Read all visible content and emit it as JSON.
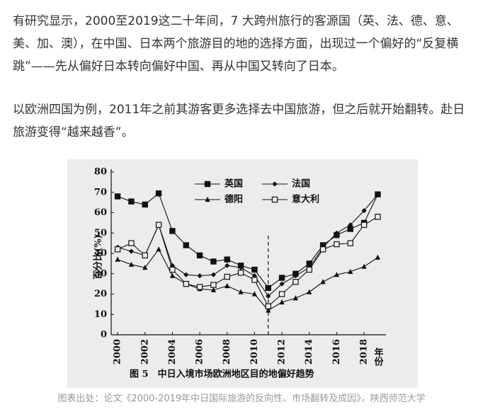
{
  "paragraphs": [
    "有研究显示，2000至2019这二十年间，7 大跨州旅行的客源国（英、法、德、意、美、加、澳），在中国、日本两个旅游目的地的选择方面，出现过一个偏好的“反复横跳”——先从偏好日本转向偏好中国、再从中国又转向了日本。",
    "以欧洲四国为例，2011年之前其游客更多选择去中国旅游，但之后就开始翻转。赴日旅游变得“越来越香”。"
  ],
  "caption": "图表出处：论文《2000-2019年中日国际旅游的反向性、市场翻转及成因》，陕西师范大学",
  "chart_data": {
    "type": "line",
    "figure_title": "图 5　中日入境市场欧洲地区目的地偏好趋势",
    "y_label": "百分比(%)",
    "x_label": "年份",
    "x": [
      2000,
      2001,
      2002,
      2003,
      2004,
      2005,
      2006,
      2007,
      2008,
      2009,
      2010,
      2011,
      2012,
      2013,
      2014,
      2015,
      2016,
      2017,
      2018,
      2019
    ],
    "series": [
      {
        "name": "英国",
        "color": "#111111",
        "marker": "square",
        "values": [
          68,
          65.5,
          64,
          69.5,
          51,
          44,
          39,
          36,
          37,
          34,
          32,
          23,
          28,
          30,
          35,
          44,
          49,
          52,
          55,
          69
        ]
      },
      {
        "name": "法国",
        "color": "#111111",
        "marker": "diamond",
        "values": [
          43,
          41,
          39,
          54,
          34,
          29.5,
          29,
          29.5,
          34,
          33,
          29,
          19,
          25,
          29,
          33,
          43,
          50,
          54,
          61,
          69
        ]
      },
      {
        "name": "德阳",
        "color": "#111111",
        "marker": "triangle",
        "values": [
          37,
          34.5,
          33,
          42,
          29,
          25,
          22.5,
          22,
          24,
          21,
          20,
          12,
          16,
          18,
          21,
          26,
          29.5,
          31,
          33.5,
          38
        ]
      },
      {
        "name": "意大利",
        "color": "#111111",
        "marker": "open-square",
        "values": [
          42,
          45,
          39,
          54,
          32,
          25,
          23.5,
          24.5,
          28.5,
          30.5,
          27,
          14,
          20,
          26,
          32,
          42,
          44.5,
          45,
          54,
          58
        ]
      }
    ],
    "xlim": [
      1999.53,
      2019.6
    ],
    "xticks": [
      2000,
      2002,
      2004,
      2006,
      2008,
      2010,
      2012,
      2014,
      2016,
      2018
    ],
    "ylim": [
      0,
      80
    ],
    "yticks": [
      0,
      10,
      20,
      30,
      40,
      50,
      60,
      70,
      80
    ],
    "vline": 2011
  }
}
